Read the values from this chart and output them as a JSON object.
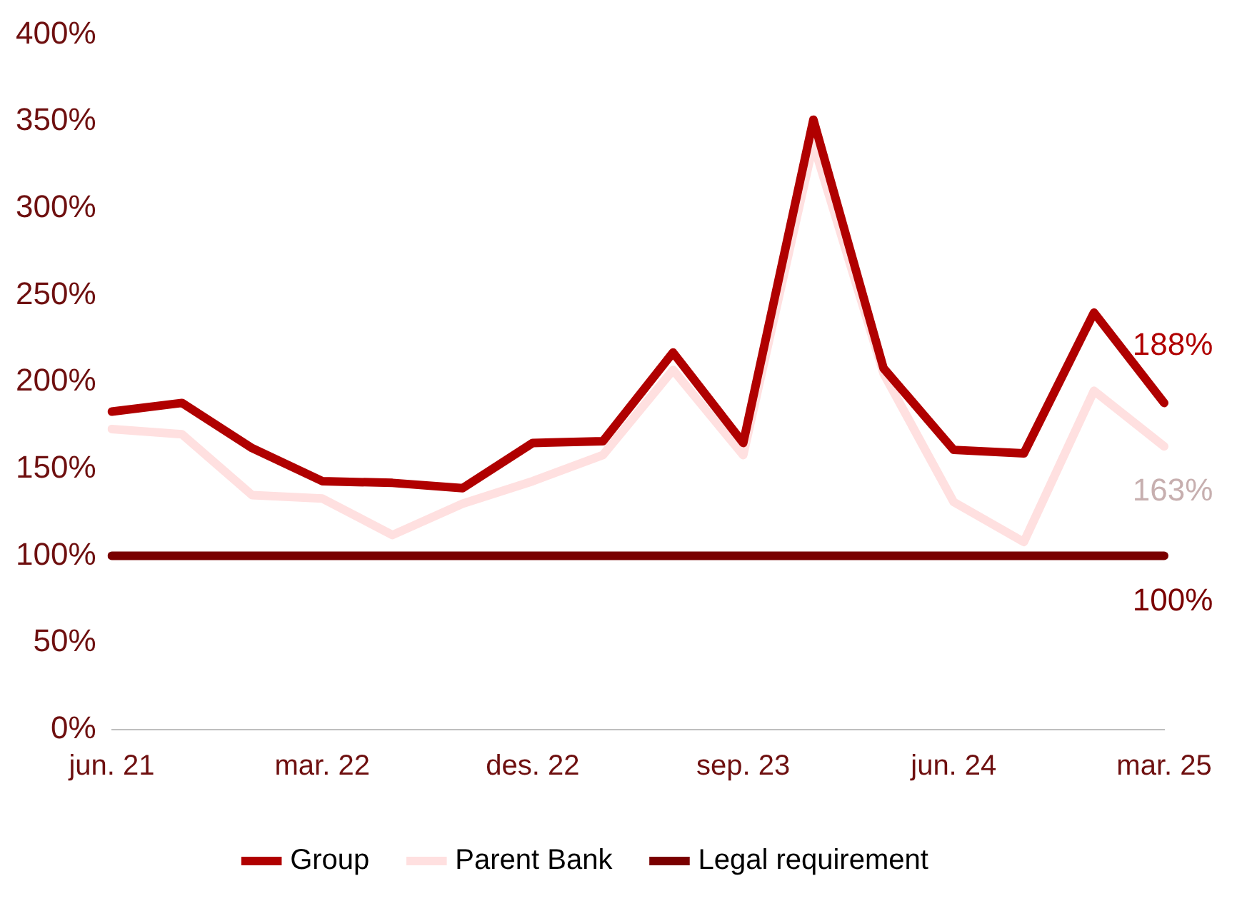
{
  "chart_data": {
    "type": "line",
    "categories": [
      "jun. 21",
      null,
      null,
      "mar. 22",
      null,
      null,
      "des. 22",
      null,
      null,
      "sep. 23",
      null,
      null,
      "jun. 24",
      null,
      null,
      "mar. 25"
    ],
    "series": [
      {
        "name": "Group",
        "color": "#b00000",
        "values": [
          183,
          188,
          162,
          143,
          142,
          139,
          165,
          166,
          217,
          165,
          351,
          208,
          161,
          159,
          240,
          188
        ],
        "value_labels": [
          null,
          null,
          null,
          null,
          null,
          null,
          null,
          null,
          null,
          null,
          null,
          null,
          null,
          null,
          null,
          "188%"
        ]
      },
      {
        "name": "Parent Bank",
        "color": "#ffe0e0",
        "values": [
          173,
          170,
          135,
          133,
          112,
          130,
          143,
          158,
          207,
          158,
          337,
          205,
          131,
          108,
          195,
          163
        ],
        "value_labels": [
          null,
          null,
          null,
          null,
          null,
          null,
          null,
          null,
          null,
          null,
          null,
          null,
          null,
          null,
          null,
          "163%"
        ]
      },
      {
        "name": "Legal requirement",
        "color": "#7a0000",
        "values": [
          100,
          100,
          100,
          100,
          100,
          100,
          100,
          100,
          100,
          100,
          100,
          100,
          100,
          100,
          100,
          100
        ],
        "value_labels": [
          null,
          null,
          null,
          null,
          null,
          null,
          null,
          null,
          null,
          null,
          null,
          null,
          null,
          null,
          null,
          "100%"
        ]
      }
    ],
    "ylim": [
      0,
      400
    ],
    "yticks": [
      {
        "value": 0,
        "label": "0%"
      },
      {
        "value": 50,
        "label": "50%"
      },
      {
        "value": 100,
        "label": "100%"
      },
      {
        "value": 150,
        "label": "150%"
      },
      {
        "value": 200,
        "label": "200%"
      },
      {
        "value": 250,
        "label": "250%"
      },
      {
        "value": 300,
        "label": "300%"
      },
      {
        "value": 350,
        "label": "350%"
      },
      {
        "value": 400,
        "label": "400%"
      }
    ],
    "grid": false,
    "legend": "bottom",
    "marker": "none",
    "line_style": "solid"
  }
}
